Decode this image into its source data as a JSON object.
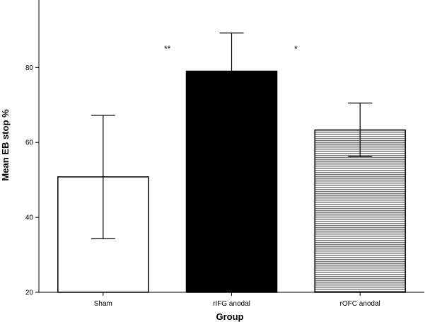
{
  "chart_data": {
    "type": "bar",
    "xlabel": "Group",
    "ylabel": "Mean EB stop %",
    "ylim": [
      20,
      98
    ],
    "yticks": [
      20,
      40,
      60,
      80
    ],
    "categories": [
      "Sham",
      "rIFG anodal",
      "rOFC anodal"
    ],
    "values": [
      50.8,
      79.0,
      63.3
    ],
    "error_low": [
      34.3,
      68.8,
      56.2
    ],
    "error_high": [
      67.2,
      89.2,
      70.5
    ],
    "fills": [
      "white",
      "black",
      "horizontal-stripes"
    ],
    "annotations": [
      {
        "text": "**",
        "between": [
          0,
          1
        ],
        "y": 85
      },
      {
        "text": "*",
        "between": [
          1,
          2
        ],
        "y": 85
      }
    ],
    "grid": false,
    "legend": "none"
  }
}
